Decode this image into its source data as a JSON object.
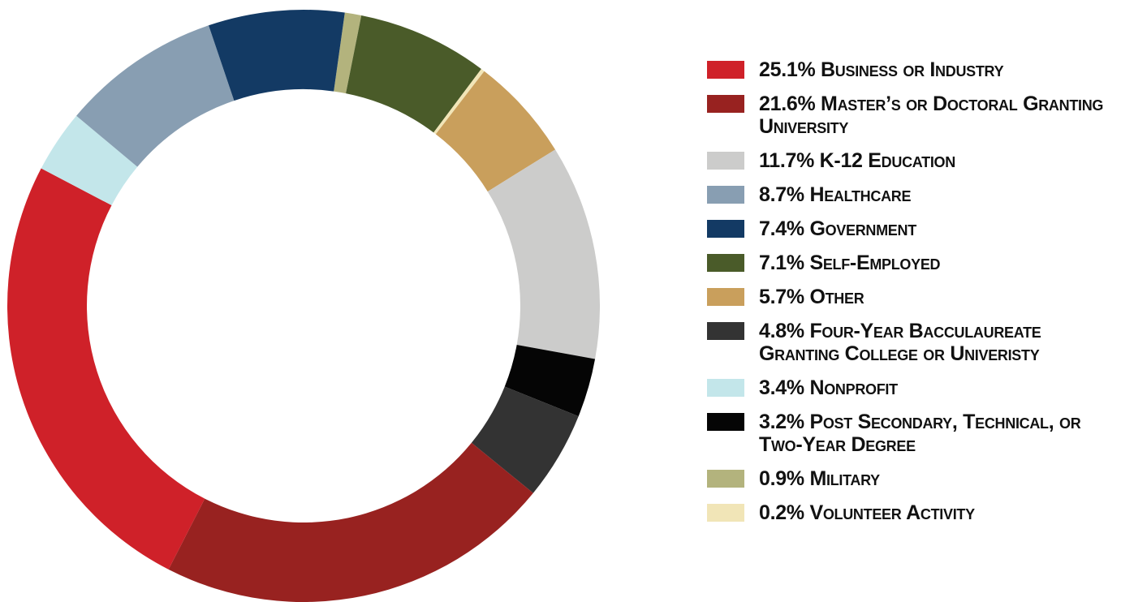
{
  "chart_data": {
    "type": "donut",
    "categories": [
      "Business or Industry",
      "Master’s or Doctoral Granting University",
      "K-12 Education",
      "Healthcare",
      "Government",
      "Self-Employed",
      "Other",
      "Four-Year Bacculaureate Granting College or Univeristy",
      "Nonprofit",
      "Post Secondary, Technical, or Two-Year Degree",
      "Military",
      "Volunteer Activity"
    ],
    "values": [
      25.1,
      21.6,
      11.7,
      8.7,
      7.4,
      7.1,
      5.7,
      4.8,
      3.4,
      3.2,
      0.9,
      0.2
    ],
    "value_labels": [
      "25.1%",
      "21.6%",
      "11.7%",
      "8.7%",
      "7.4%",
      "7.1%",
      "5.7%",
      "4.8%",
      "3.4%",
      "3.2%",
      "0.9%",
      "0.2%"
    ],
    "colors": [
      "#cf2129",
      "#982220",
      "#cccccb",
      "#889eb2",
      "#133a64",
      "#4a5b29",
      "#c99f5c",
      "#333333",
      "#c3e6ea",
      "#050505",
      "#b3b37d",
      "#f1e5b7"
    ],
    "legend": "right"
  }
}
